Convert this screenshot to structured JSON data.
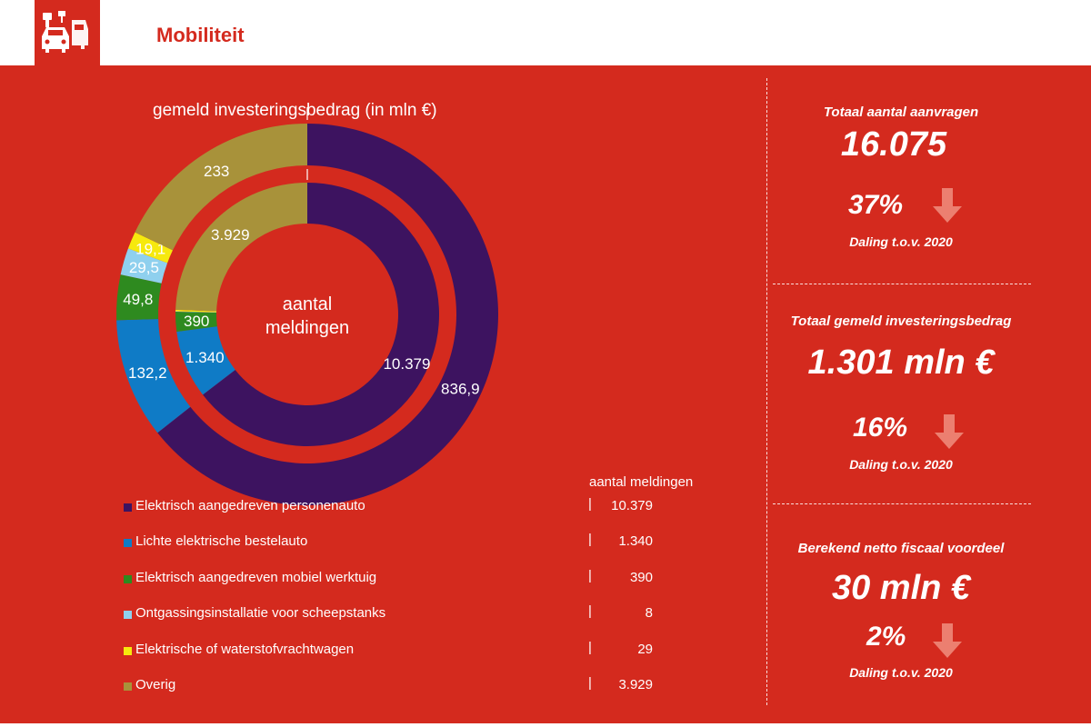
{
  "header": {
    "title": "Mobiliteit",
    "logo_icon": "vehicles-charging-icon"
  },
  "colors": {
    "background_panel": "#d42a1e",
    "text": "#ffffff",
    "arrow": "#ec7f70"
  },
  "chart_data": {
    "type": "donut",
    "title": "gemeld investeringsbedrag (in mln €)",
    "center_label": "aantal meldingen",
    "legend_value_header": "aantal meldingen",
    "categories": [
      "Elektrisch aangedreven personenauto",
      "Lichte elektrische bestelauto",
      "Elektrisch aangedreven mobiel werktuig",
      "Ontgassingsinstallatie voor scheepstanks",
      "Elektrische of waterstofvrachtwagen",
      "Overig"
    ],
    "colors": [
      "#3d1360",
      "#0f7bc6",
      "#2e8a1f",
      "#8fd0ee",
      "#f6e90e",
      "#a8923a"
    ],
    "series": [
      {
        "name": "aantal meldingen",
        "ring": "inner",
        "values": [
          10379,
          1340,
          390,
          8,
          29,
          3929
        ],
        "labels": [
          "10.379",
          "1.340",
          "390",
          "",
          "",
          "3.929"
        ],
        "legend_labels": [
          "10.379",
          "1.340",
          "390",
          "8",
          "29",
          "3.929"
        ]
      },
      {
        "name": "gemeld investeringsbedrag (in mln €)",
        "ring": "outer",
        "values": [
          836.9,
          132.2,
          49.8,
          29.5,
          19.1,
          233
        ],
        "labels": [
          "836,9",
          "132,2",
          "49,8",
          "29,5",
          "19,1",
          "233"
        ]
      }
    ]
  },
  "stats": [
    {
      "label": "Totaal aantal aanvragen",
      "value": "16.075",
      "percentage": "37%",
      "direction": "down",
      "arrow_icon": "arrow-down-icon",
      "comparison": "Daling t.o.v. 2020"
    },
    {
      "label": "Totaal gemeld investeringsbedrag",
      "value": "1.301 mln €",
      "percentage": "16%",
      "direction": "down",
      "arrow_icon": "arrow-down-icon",
      "comparison": "Daling t.o.v. 2020"
    },
    {
      "label": "Berekend netto fiscaal voordeel",
      "value": "30 mln €",
      "percentage": "2%",
      "direction": "down",
      "arrow_icon": "arrow-down-icon",
      "comparison": "Daling t.o.v. 2020"
    }
  ]
}
